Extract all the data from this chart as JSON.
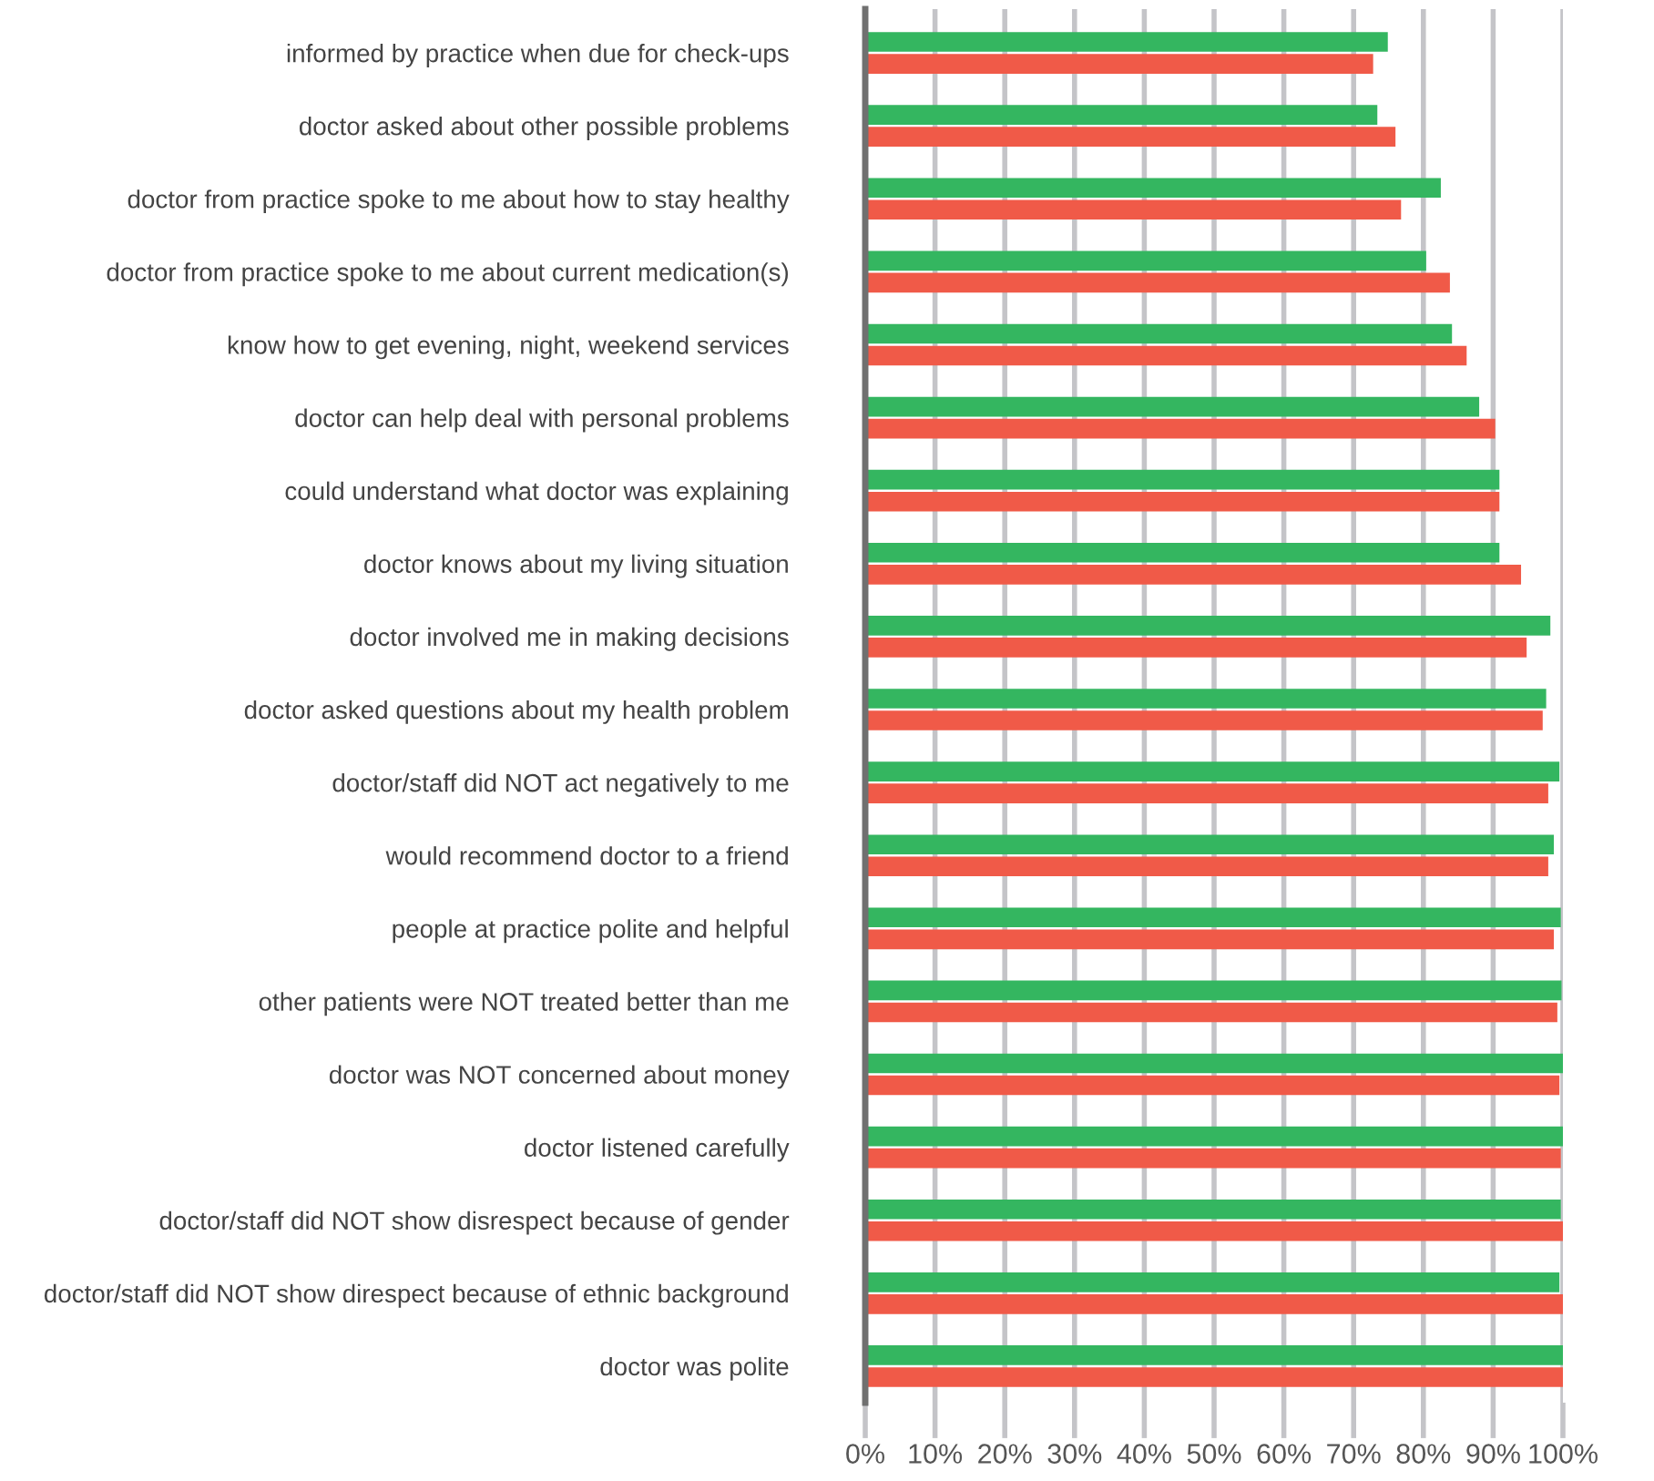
{
  "chart_data": {
    "type": "bar",
    "orientation": "horizontal",
    "categories": [
      "informed by practice when due for check-ups",
      "doctor asked about other possible problems",
      "doctor from practice spoke to me about how to stay healthy",
      "doctor from practice spoke to me about current medication(s)",
      "know how to get evening, night, weekend services",
      "doctor can help deal with personal problems",
      "could understand what doctor was explaining",
      "doctor knows about my living situation",
      "doctor involved me in making decisions",
      "doctor asked questions about my health problem",
      "doctor/staff did NOT act negatively to me",
      "would recommend doctor to a friend",
      "people at practice polite and helpful",
      "other patients were NOT treated better than me",
      "doctor was NOT concerned about money",
      "doctor listened carefully",
      "doctor/staff did NOT show disrespect because of gender",
      "doctor/staff did NOT show direspect because of ethnic background",
      "doctor was polite"
    ],
    "series": [
      {
        "color": "#34b660",
        "values": [
          74.9,
          73.4,
          82.5,
          80.4,
          84.1,
          88.0,
          90.9,
          90.9,
          98.2,
          97.6,
          99.5,
          98.7,
          99.7,
          99.8,
          100,
          100,
          99.7,
          99.5,
          100
        ]
      },
      {
        "color": "#f05a48",
        "values": [
          72.8,
          76.0,
          76.8,
          83.8,
          86.2,
          90.3,
          90.9,
          94.0,
          94.8,
          97.1,
          97.9,
          97.9,
          98.7,
          99.2,
          99.5,
          99.7,
          100,
          100,
          100
        ]
      }
    ],
    "xlim": [
      0,
      100
    ],
    "xticks": [
      {
        "value": 0,
        "label": "0%"
      },
      {
        "value": 10,
        "label": "10%"
      },
      {
        "value": 20,
        "label": "20%"
      },
      {
        "value": 30,
        "label": "30%"
      },
      {
        "value": 40,
        "label": "40%"
      },
      {
        "value": 50,
        "label": "50%"
      },
      {
        "value": 60,
        "label": "60%"
      },
      {
        "value": 70,
        "label": "70%"
      },
      {
        "value": 80,
        "label": "80%"
      },
      {
        "value": 90,
        "label": "90%"
      },
      {
        "value": 100,
        "label": "100%"
      }
    ],
    "grid": "x"
  }
}
